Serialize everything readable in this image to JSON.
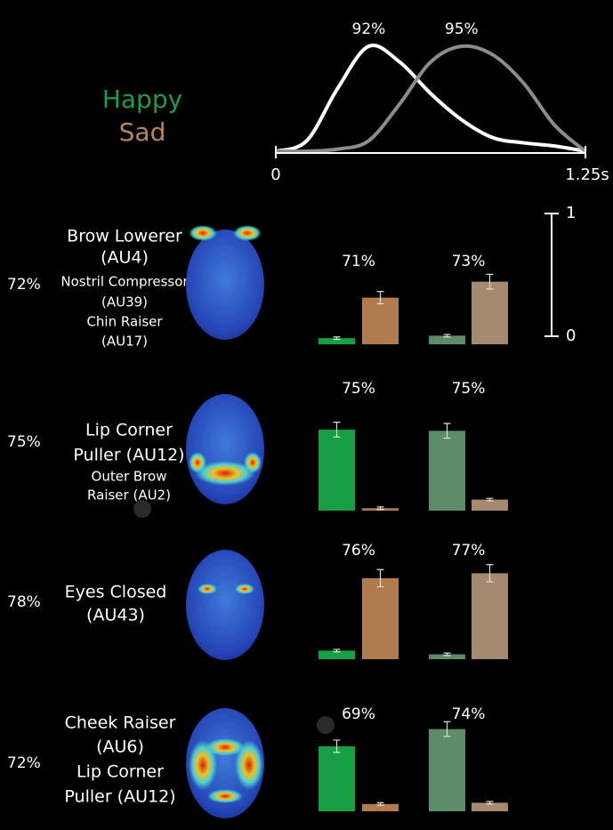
{
  "timeline": {
    "type": "line",
    "x": [
      0,
      0.125,
      0.25,
      0.375,
      0.5,
      0.625,
      0.75,
      0.875,
      1.0,
      1.125,
      1.25
    ],
    "xlim": [
      0,
      1.25
    ],
    "ylim": [
      0,
      1
    ],
    "xticks": [
      0,
      {
        "value": 1.25,
        "label": "1.25s"
      }
    ],
    "series": [
      {
        "color": "#ffffff",
        "peak_label": "92%",
        "values": [
          0,
          0.1,
          0.6,
          1.0,
          0.85,
          0.55,
          0.3,
          0.13,
          0.08,
          0.05,
          0
        ]
      },
      {
        "color": "#8c8c8c",
        "peak_label": "95%",
        "values": [
          0,
          0,
          0.02,
          0.1,
          0.45,
          0.85,
          1.0,
          0.92,
          0.65,
          0.25,
          0
        ]
      }
    ]
  },
  "legend": [
    {
      "name": "Happy",
      "color": "#1f9c47"
    },
    {
      "name": "Sad",
      "color": "#b8855a"
    }
  ],
  "scale": {
    "ylim": [
      0,
      1
    ],
    "yticks": [
      0,
      1
    ]
  },
  "rows": [
    {
      "accuracy": "72%",
      "labels": [
        "Brow Lowerer",
        "(AU4)",
        "Nostril Compressor",
        "(AU39)",
        "Chin Raiser",
        "(AU17)"
      ],
      "groups": [
        {
          "accuracy": "71%",
          "colors": [
            "#17a043",
            "#b07c4d"
          ],
          "values": [
            0.05,
            0.38
          ],
          "errors": [
            0.01,
            0.05
          ]
        },
        {
          "accuracy": "73%",
          "colors": [
            "#5e8c68",
            "#a48a6e"
          ],
          "values": [
            0.07,
            0.51
          ],
          "errors": [
            0.01,
            0.06
          ]
        }
      ]
    },
    {
      "accuracy": "75%",
      "labels": [
        "Lip Corner",
        "Puller (AU12)",
        "Outer Brow",
        "Raiser (AU2)"
      ],
      "groups": [
        {
          "accuracy": "75%",
          "colors": [
            "#17a043",
            "#b07c4d"
          ],
          "values": [
            0.66,
            0.02
          ],
          "errors": [
            0.06,
            0.01
          ]
        },
        {
          "accuracy": "75%",
          "colors": [
            "#5e8c68",
            "#a48a6e"
          ],
          "values": [
            0.65,
            0.09
          ],
          "errors": [
            0.06,
            0.01
          ]
        }
      ]
    },
    {
      "accuracy": "78%",
      "labels": [
        "Eyes Closed",
        "(AU43)"
      ],
      "groups": [
        {
          "accuracy": "76%",
          "colors": [
            "#17a043",
            "#b07c4d"
          ],
          "values": [
            0.07,
            0.66
          ],
          "errors": [
            0.01,
            0.07
          ]
        },
        {
          "accuracy": "77%",
          "colors": [
            "#5e8c68",
            "#a48a6e"
          ],
          "values": [
            0.04,
            0.7
          ],
          "errors": [
            0.01,
            0.07
          ]
        }
      ]
    },
    {
      "accuracy": "72%",
      "labels": [
        "Cheek Raiser",
        "(AU6)",
        "Lip Corner",
        "Puller (AU12)"
      ],
      "groups": [
        {
          "accuracy": "69%",
          "colors": [
            "#17a043",
            "#b07c4d"
          ],
          "values": [
            0.53,
            0.06
          ],
          "errors": [
            0.05,
            0.01
          ]
        },
        {
          "accuracy": "74%",
          "colors": [
            "#5e8c68",
            "#a48a6e"
          ],
          "values": [
            0.67,
            0.07
          ],
          "errors": [
            0.06,
            0.01
          ]
        }
      ]
    }
  ]
}
